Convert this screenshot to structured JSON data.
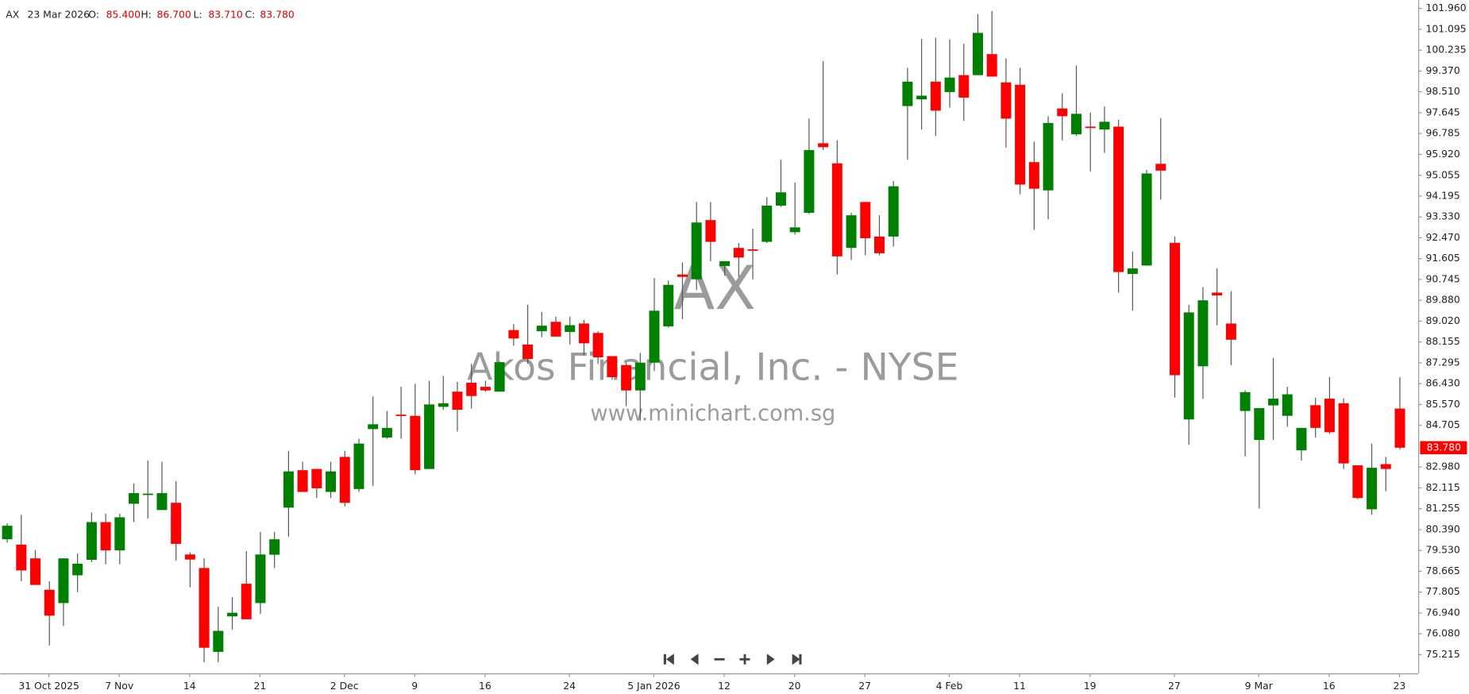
{
  "header": {
    "symbol": "AX",
    "date": "23 Mar 2026",
    "fields": [
      {
        "label": "O:",
        "value": "85.400"
      },
      {
        "label": "H:",
        "value": "86.700"
      },
      {
        "label": "L:",
        "value": "83.710"
      },
      {
        "label": "C:",
        "value": "83.780"
      }
    ]
  },
  "watermark": {
    "symbol": "AX",
    "name": "Akos Financial, Inc. - NYSE",
    "site": "www.minichart.com.sg"
  },
  "chart_data": {
    "type": "candlestick",
    "up_color": "#008000",
    "down_color": "#ff0000",
    "categories": [
      null,
      null,
      null,
      "31 Oct 2025",
      null,
      null,
      null,
      null,
      "7 Nov",
      null,
      null,
      null,
      null,
      "14",
      null,
      null,
      null,
      null,
      "21",
      null,
      null,
      null,
      null,
      null,
      "2 Dec",
      null,
      null,
      null,
      null,
      "9",
      null,
      null,
      null,
      null,
      "16",
      null,
      null,
      null,
      null,
      null,
      "24",
      null,
      null,
      null,
      null,
      null,
      "5 Jan 2026",
      null,
      null,
      null,
      null,
      "12",
      null,
      null,
      null,
      null,
      "20",
      null,
      null,
      null,
      null,
      "27",
      null,
      null,
      null,
      null,
      null,
      "4 Feb",
      null,
      null,
      null,
      null,
      "11",
      null,
      null,
      null,
      null,
      "19",
      null,
      null,
      null,
      null,
      null,
      "27",
      null,
      null,
      null,
      null,
      null,
      "9 Mar",
      null,
      null,
      null,
      null,
      "16",
      null,
      null,
      null,
      null,
      "23"
    ],
    "open": [
      79.99,
      79.77,
      79.2,
      77.9,
      77.35,
      78.5,
      79.14,
      80.7,
      79.53,
      81.46,
      81.86,
      81.2,
      81.5,
      79.36,
      78.8,
      75.33,
      76.8,
      78.15,
      77.35,
      79.35,
      81.3,
      82.85,
      82.9,
      81.95,
      83.4,
      82.07,
      84.55,
      84.2,
      85.15,
      85.1,
      82.9,
      85.47,
      86.1,
      86.47,
      86.3,
      86.1,
      88.65,
      88.05,
      88.6,
      88.99,
      88.57,
      88.92,
      88.53,
      87.57,
      87.2,
      86.15,
      87.3,
      88.8,
      90.95,
      90.75,
      93.2,
      91.3,
      92.05,
      91.99,
      92.3,
      93.8,
      92.7,
      93.5,
      96.38,
      95.55,
      92.05,
      93.95,
      92.52,
      92.52,
      97.92,
      98.2,
      98.93,
      98.5,
      99.2,
      99.2,
      100.07,
      98.9,
      98.8,
      95.6,
      94.43,
      97.82,
      96.75,
      97.07,
      96.95,
      97.07,
      90.97,
      91.32,
      95.53,
      92.26,
      84.95,
      87.15,
      90.2,
      88.92,
      85.3,
      84.1,
      85.53,
      85.1,
      83.67,
      85.54,
      85.81,
      85.62,
      83.05,
      81.23,
      83.1,
      85.4
    ],
    "high": [
      80.65,
      81.0,
      79.55,
      78.25,
      79.2,
      79.4,
      81.1,
      81.05,
      81.05,
      82.3,
      83.25,
      83.2,
      82.4,
      79.45,
      79.2,
      77.2,
      77.6,
      79.5,
      80.3,
      80.3,
      83.65,
      83.2,
      82.9,
      83.2,
      83.65,
      84.15,
      85.9,
      85.3,
      86.3,
      86.43,
      86.55,
      86.75,
      86.5,
      87.25,
      86.55,
      87.35,
      88.9,
      89.7,
      89.4,
      89.2,
      89.2,
      89.07,
      88.6,
      87.57,
      87.3,
      87.7,
      90.8,
      90.7,
      91.45,
      93.95,
      93.95,
      91.5,
      92.25,
      92.85,
      94.15,
      95.7,
      94.75,
      97.4,
      99.78,
      96.5,
      93.5,
      93.95,
      93.4,
      94.82,
      99.5,
      100.7,
      100.75,
      100.68,
      100.5,
      101.73,
      101.85,
      99.9,
      99.5,
      96.45,
      97.5,
      98.45,
      99.6,
      97.65,
      97.9,
      97.35,
      91.9,
      95.28,
      97.42,
      92.52,
      89.7,
      90.43,
      91.2,
      90.25,
      86.15,
      85.42,
      87.49,
      86.3,
      84.6,
      85.85,
      86.7,
      85.82,
      83.05,
      83.95,
      83.4,
      86.7
    ],
    "low": [
      79.85,
      78.25,
      78.1,
      75.6,
      76.4,
      77.8,
      79.05,
      78.95,
      78.95,
      80.7,
      80.85,
      81.2,
      79.1,
      78.0,
      74.9,
      74.9,
      76.25,
      76.68,
      76.9,
      78.8,
      80.1,
      81.95,
      81.7,
      81.7,
      81.35,
      81.95,
      82.2,
      84.15,
      84.15,
      82.68,
      82.9,
      85.35,
      84.45,
      85.4,
      86.1,
      86.1,
      88.0,
      87.25,
      88.35,
      88.37,
      88.05,
      87.6,
      87.25,
      86.6,
      85.5,
      84.9,
      86.95,
      88.75,
      89.1,
      90.3,
      91.5,
      90.9,
      90.85,
      90.75,
      92.25,
      93.75,
      92.6,
      93.45,
      96.1,
      90.95,
      91.55,
      91.75,
      91.75,
      92.1,
      95.7,
      96.95,
      96.68,
      97.85,
      97.3,
      99.2,
      99.14,
      96.2,
      94.27,
      92.8,
      93.23,
      96.5,
      96.68,
      95.22,
      95.98,
      90.2,
      89.45,
      91.32,
      94.05,
      85.85,
      83.9,
      85.8,
      88.85,
      87.2,
      83.42,
      81.26,
      84.1,
      84.65,
      83.25,
      84.2,
      84.35,
      82.9,
      81.65,
      81.0,
      81.98,
      83.71
    ],
    "close": [
      80.55,
      78.7,
      78.1,
      76.83,
      79.2,
      78.98,
      80.7,
      79.53,
      80.9,
      81.9,
      81.88,
      81.9,
      79.8,
      79.15,
      75.5,
      76.2,
      76.95,
      76.68,
      79.36,
      79.99,
      82.8,
      81.95,
      82.1,
      82.8,
      81.5,
      83.95,
      84.75,
      84.6,
      85.1,
      82.85,
      85.57,
      85.62,
      85.35,
      85.92,
      86.15,
      87.32,
      88.3,
      87.45,
      88.83,
      88.38,
      88.85,
      88.1,
      87.52,
      86.7,
      86.15,
      87.3,
      89.45,
      90.52,
      90.85,
      93.1,
      92.3,
      91.5,
      91.65,
      91.95,
      93.8,
      94.35,
      92.9,
      96.1,
      96.22,
      91.7,
      93.4,
      92.45,
      91.83,
      94.6,
      98.93,
      98.35,
      97.73,
      99.1,
      98.27,
      100.95,
      99.14,
      97.4,
      94.67,
      94.5,
      97.22,
      97.5,
      97.6,
      97.03,
      97.27,
      91.05,
      91.2,
      95.13,
      95.25,
      86.78,
      89.38,
      89.88,
      90.08,
      88.25,
      86.08,
      85.42,
      85.81,
      85.99,
      84.6,
      84.6,
      84.42,
      83.13,
      81.7,
      82.95,
      82.9,
      83.78
    ],
    "ylim": [
      74.44,
      102.31
    ],
    "yticks": [
      {
        "value": 101.96,
        "label": "101.960"
      },
      101.095,
      100.235,
      {
        "value": 99.37,
        "label": "99.370"
      },
      {
        "value": 98.51,
        "label": "98.510"
      },
      97.645,
      96.785,
      {
        "value": 95.92,
        "label": "95.920"
      },
      95.055,
      94.195,
      {
        "value": 93.33,
        "label": "93.330"
      },
      {
        "value": 92.47,
        "label": "92.470"
      },
      91.605,
      90.745,
      {
        "value": 89.88,
        "label": "89.880"
      },
      {
        "value": 89.02,
        "label": "89.020"
      },
      88.155,
      87.295,
      {
        "value": 86.43,
        "label": "86.430"
      },
      {
        "value": 85.57,
        "label": "85.570"
      },
      84.705,
      {
        "value": 82.98,
        "label": "82.980"
      },
      82.115,
      81.255,
      {
        "value": 80.39,
        "label": "80.390"
      },
      {
        "value": 79.53,
        "label": "79.530"
      },
      78.665,
      77.805,
      {
        "value": 76.94,
        "label": "76.940"
      },
      {
        "value": 76.08,
        "label": "76.080"
      },
      75.215
    ],
    "last_price": {
      "value": 83.78,
      "label": "83.780",
      "color": "#ff0000"
    }
  }
}
